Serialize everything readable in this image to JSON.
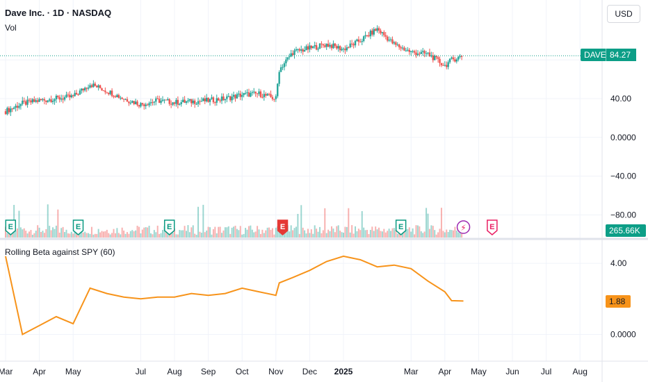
{
  "header": {
    "title": "Dave Inc. · 1D · NASDAQ",
    "volume_label": "Vol",
    "currency_button": "USD"
  },
  "price_pane": {
    "symbol_tag": "DAVE",
    "last_price": "84.27",
    "last_price_value": 84.27,
    "y_ticks": [
      "40.00",
      "0.0000",
      "−40.00",
      "−80.00"
    ],
    "y_tick_values": [
      40,
      0,
      -40,
      -80
    ],
    "colors": {
      "up": "#26a69a",
      "down": "#ef5350",
      "last_price_line": "#0c9e87"
    }
  },
  "volume_pane": {
    "last_volume": "265.66K",
    "event_markers": [
      {
        "label": "E",
        "month_pos": 0.15,
        "style": "earnings-past"
      },
      {
        "label": "E",
        "month_pos": 2.15,
        "style": "earnings-past"
      },
      {
        "label": "E",
        "month_pos": 4.85,
        "style": "earnings-past"
      },
      {
        "label": "E",
        "month_pos": 8.2,
        "style": "earnings-red"
      },
      {
        "label": "E",
        "month_pos": 11.7,
        "style": "earnings-past"
      },
      {
        "label": "⚡",
        "month_pos": 13.55,
        "style": "flash"
      },
      {
        "label": "E",
        "month_pos": 14.4,
        "style": "earnings-future"
      }
    ]
  },
  "indicator_pane": {
    "label": "Rolling Beta against SPY (60)",
    "last_value": "1.88",
    "y_ticks": [
      "4.00",
      "0.0000"
    ],
    "y_tick_values": [
      4,
      0
    ],
    "line_color": "#f7931a"
  },
  "x_axis": {
    "labels": [
      "Mar",
      "Apr",
      "May",
      "Jul",
      "Aug",
      "Sep",
      "Oct",
      "Nov",
      "Dec",
      "2025",
      "Mar",
      "Apr",
      "May",
      "Jun",
      "Jul",
      "Aug"
    ],
    "label_month_pos": [
      0,
      1,
      2,
      4,
      5,
      6,
      7,
      8,
      9,
      10,
      12,
      13,
      14,
      15,
      16,
      17
    ]
  },
  "chart_data": {
    "type": "line",
    "x": [
      0,
      0.5,
      1,
      1.5,
      2,
      2.5,
      3,
      3.5,
      4,
      4.5,
      5,
      5.5,
      6,
      6.5,
      7,
      7.5,
      8,
      8.1,
      8.5,
      9,
      9.5,
      10,
      10.5,
      11,
      11.5,
      12,
      12.5,
      13,
      13.2,
      13.55
    ],
    "x_unit": "months since Mar 2024",
    "series": [
      {
        "values": [
          27,
          35,
          38,
          40,
          42,
          55,
          48,
          40,
          34,
          38,
          36,
          37,
          38,
          40,
          44,
          45,
          40,
          70,
          88,
          92,
          96,
          91,
          100,
          112,
          96,
          88,
          86,
          74,
          80,
          84.27
        ]
      },
      {
        "values": [
          4.4,
          0.0,
          0.5,
          1.0,
          0.6,
          2.6,
          2.3,
          2.1,
          2.0,
          2.1,
          2.1,
          2.3,
          2.2,
          2.3,
          2.6,
          2.4,
          2.2,
          2.9,
          3.2,
          3.6,
          4.1,
          4.4,
          4.2,
          3.8,
          3.9,
          3.7,
          3.0,
          2.4,
          1.9,
          1.88
        ]
      }
    ]
  }
}
